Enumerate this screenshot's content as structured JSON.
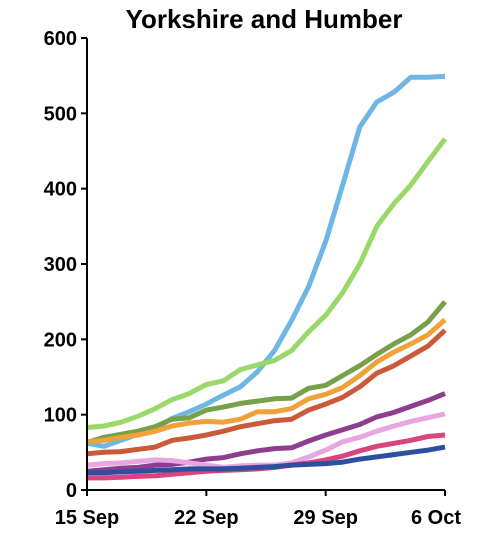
{
  "chart_data": {
    "type": "line",
    "title": "Yorkshire and Humber",
    "xlabel": "",
    "ylabel": "",
    "ylim": [
      0,
      600
    ],
    "y_ticks": [
      0,
      100,
      200,
      300,
      400,
      500,
      600
    ],
    "x_ticks": [
      "15 Sep",
      "22 Sep",
      "29 Sep",
      "6 Oct"
    ],
    "x_tick_days": [
      0,
      7,
      14,
      21
    ],
    "grid": false,
    "legend": "none",
    "series": [
      {
        "color": "#6EB6E3",
        "values": [
          62,
          58,
          66,
          74,
          82,
          95,
          104,
          114,
          126,
          137,
          157,
          185,
          225,
          270,
          330,
          405,
          482,
          515,
          528,
          548,
          548,
          549
        ]
      },
      {
        "color": "#9AD86A",
        "values": [
          83,
          85,
          90,
          98,
          108,
          120,
          128,
          140,
          145,
          160,
          166,
          172,
          185,
          210,
          232,
          262,
          300,
          350,
          380,
          405,
          436,
          466
        ]
      },
      {
        "color": "#76A04A",
        "values": [
          63,
          70,
          74,
          78,
          84,
          94,
          96,
          106,
          110,
          115,
          118,
          121,
          122,
          135,
          139,
          152,
          165,
          180,
          194,
          206,
          223,
          250
        ]
      },
      {
        "color": "#F0A23A",
        "values": [
          64,
          66,
          70,
          73,
          78,
          85,
          89,
          91,
          90,
          94,
          104,
          104,
          108,
          121,
          127,
          136,
          152,
          170,
          183,
          194,
          206,
          226
        ]
      },
      {
        "color": "#CB5A3A",
        "values": [
          48,
          50,
          51,
          54,
          57,
          66,
          69,
          73,
          78,
          84,
          88,
          92,
          94,
          106,
          114,
          123,
          137,
          155,
          165,
          178,
          191,
          212
        ]
      },
      {
        "color": "#8E3E8E",
        "values": [
          25,
          27,
          29,
          30,
          33,
          34,
          37,
          41,
          43,
          48,
          52,
          55,
          56,
          65,
          73,
          80,
          87,
          97,
          103,
          111,
          119,
          128
        ]
      },
      {
        "color": "#E8A6E0",
        "values": [
          33,
          35,
          36,
          38,
          40,
          39,
          36,
          33,
          30,
          32,
          33,
          33,
          36,
          44,
          53,
          64,
          70,
          78,
          85,
          91,
          96,
          101
        ]
      },
      {
        "color": "#D8447C",
        "values": [
          16,
          16,
          17,
          18,
          19,
          21,
          23,
          25,
          26,
          27,
          28,
          30,
          33,
          36,
          40,
          45,
          52,
          58,
          62,
          66,
          71,
          73
        ]
      },
      {
        "color": "#2E4FA0",
        "values": [
          23,
          23,
          24,
          25,
          26,
          27,
          28,
          28,
          28,
          29,
          30,
          31,
          33,
          34,
          35,
          37,
          41,
          44,
          47,
          50,
          53,
          57
        ]
      }
    ]
  }
}
